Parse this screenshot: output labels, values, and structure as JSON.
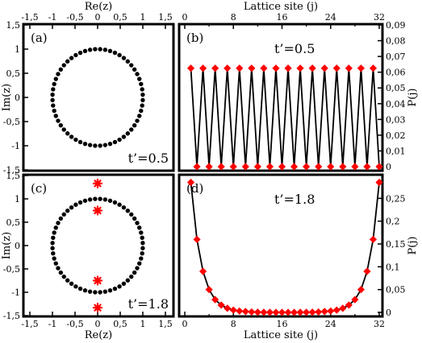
{
  "chart_data": [
    {
      "id": "a",
      "type": "scatter",
      "panel_label": "(a)",
      "param_label": "t’=0.5",
      "xlabel": "Re(z)",
      "ylabel": "Im(z)",
      "xlim": [
        -1.5,
        1.5
      ],
      "ylim": [
        -1.5,
        1.5
      ],
      "xticks": [
        "-1,5",
        "-1",
        "-0,5",
        "0",
        "0,5",
        "1",
        "1,5"
      ],
      "yticks": [
        "-1,5",
        "-1",
        "-0,5",
        "0",
        "0,5",
        "1",
        "1,5"
      ],
      "series": [
        {
          "marker": "dot",
          "color": "#000000",
          "ring": {
            "count": 56,
            "radius": 1.0,
            "gap_angles_deg": [
              0,
              180
            ]
          },
          "points": []
        }
      ]
    },
    {
      "id": "b",
      "type": "line",
      "panel_label": "(b)",
      "param_label": "t’=0.5",
      "xlabel": "Lattice site (j)",
      "ylabel": "P(j)",
      "xlim": [
        0,
        32
      ],
      "ylim": [
        0,
        0.09
      ],
      "xticks": [
        "0",
        "8",
        "16",
        "24",
        "32"
      ],
      "yticks": [
        "0",
        "0,01",
        "0,02",
        "0,03",
        "0,04",
        "0,05",
        "0,06",
        "0,07",
        "0,08",
        "0,09"
      ],
      "series": [
        {
          "marker": "diamond",
          "color": "#ff0000",
          "line_color": "#000000",
          "x": [
            1,
            2,
            3,
            4,
            5,
            6,
            7,
            8,
            9,
            10,
            11,
            12,
            13,
            14,
            15,
            16,
            17,
            18,
            19,
            20,
            21,
            22,
            23,
            24,
            25,
            26,
            27,
            28,
            29,
            30,
            31,
            32
          ],
          "values": [
            0.0625,
            0,
            0.0625,
            0,
            0.0625,
            0,
            0.0625,
            0,
            0.0625,
            0,
            0.0625,
            0,
            0.0625,
            0,
            0.0625,
            0,
            0.0625,
            0,
            0.0625,
            0,
            0.0625,
            0,
            0.0625,
            0,
            0.0625,
            0,
            0.0625,
            0,
            0.0625,
            0,
            0.0625,
            0
          ]
        }
      ]
    },
    {
      "id": "c",
      "type": "scatter",
      "panel_label": "(c)",
      "param_label": "t’=1.8",
      "xlabel": "Re(z)",
      "ylabel": "Im(z)",
      "xlim": [
        -1.5,
        1.5
      ],
      "ylim": [
        -1.5,
        1.5
      ],
      "xticks": [
        "-1,5",
        "-1",
        "-0,5",
        "0",
        "0,5",
        "1",
        "1,5"
      ],
      "yticks": [
        "-1,5",
        "-1",
        "-0,5",
        "0",
        "0,5",
        "1",
        "1,5"
      ],
      "series": [
        {
          "marker": "dot",
          "color": "#000000",
          "ring": {
            "count": 56,
            "radius": 1.0,
            "gap_angles_deg": [
              0,
              180
            ]
          },
          "points": []
        },
        {
          "marker": "star",
          "color": "#ff0000",
          "points": [
            [
              0,
              1.33
            ],
            [
              0,
              0.75
            ],
            [
              0,
              -0.75
            ],
            [
              0,
              -1.33
            ]
          ]
        }
      ]
    },
    {
      "id": "d",
      "type": "line",
      "panel_label": "(d)",
      "param_label": "t’=1.8",
      "xlabel": "Lattice site (j)",
      "ylabel": "P(j)",
      "xlim": [
        0,
        32
      ],
      "ylim": [
        0,
        0.3
      ],
      "xticks": [
        "0",
        "8",
        "16",
        "24",
        "32"
      ],
      "yticks": [
        "0",
        "0,05",
        "0,1",
        "0,15",
        "0,2",
        "0,25"
      ],
      "series": [
        {
          "marker": "diamond",
          "color": "#ff0000",
          "line_color": "#000000",
          "x": [
            1,
            2,
            3,
            4,
            5,
            6,
            7,
            8,
            9,
            10,
            11,
            12,
            13,
            14,
            15,
            16,
            17,
            18,
            19,
            20,
            21,
            22,
            23,
            24,
            25,
            26,
            27,
            28,
            29,
            30,
            31,
            32
          ],
          "values": [
            0.285,
            0.16,
            0.09,
            0.05,
            0.028,
            0.016,
            0.009,
            0.005,
            0.003,
            0.002,
            0.001,
            0.0005,
            0.0003,
            0.0002,
            0.0001,
            0.0001,
            0.0001,
            0.0001,
            0.0002,
            0.0003,
            0.0005,
            0.001,
            0.002,
            0.003,
            0.005,
            0.009,
            0.016,
            0.028,
            0.05,
            0.09,
            0.16,
            0.285
          ]
        }
      ]
    }
  ]
}
